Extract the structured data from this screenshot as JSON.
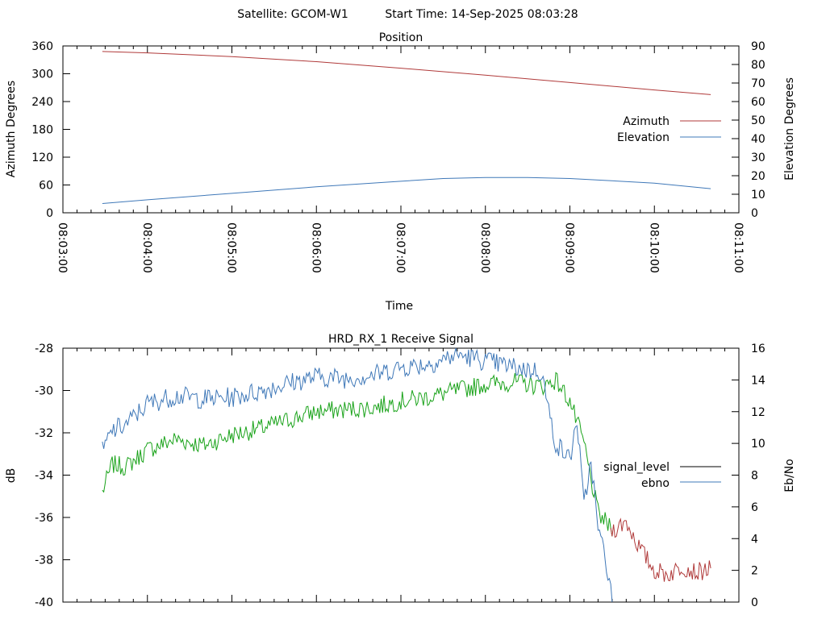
{
  "header": {
    "satellite": "Satellite: GCOM-W1",
    "start_time": "Start Time: 14-Sep-2025 08:03:28"
  },
  "colors": {
    "azimuth": "#b03a3a",
    "elevation": "#3f78b8",
    "signal_level_legend": "#000000",
    "signal_level": "#b03a3a",
    "signal_level_green": "#1aa31a",
    "ebno": "#3f78b8"
  },
  "chart_data": [
    {
      "type": "line",
      "title": "Position",
      "xlabel": "Time",
      "ylabel": "Azimuth Degrees",
      "y2label": "Elevation Degrees",
      "xlim": [
        "08:03:00",
        "08:11:00"
      ],
      "xticks": [
        "08:03:00",
        "08:04:00",
        "08:05:00",
        "08:06:00",
        "08:07:00",
        "08:08:00",
        "08:09:00",
        "08:10:00",
        "08:11:00"
      ],
      "ylim": [
        0,
        360
      ],
      "yticks": [
        "0",
        "60",
        "120",
        "180",
        "240",
        "300",
        "360"
      ],
      "y2lim": [
        0,
        90
      ],
      "y2ticks": [
        "0",
        "10",
        "20",
        "30",
        "40",
        "50",
        "60",
        "70",
        "80",
        "90"
      ],
      "legend": "right",
      "series": [
        {
          "name": "Azimuth",
          "axis": "y",
          "x": [
            "08:03:28",
            "08:04:00",
            "08:05:00",
            "08:06:00",
            "08:07:00",
            "08:08:00",
            "08:09:00",
            "08:10:00",
            "08:10:40"
          ],
          "values": [
            348,
            345,
            337,
            326,
            312,
            297,
            281,
            265,
            255
          ]
        },
        {
          "name": "Elevation",
          "axis": "y2",
          "x": [
            "08:03:28",
            "08:04:00",
            "08:05:00",
            "08:06:00",
            "08:07:00",
            "08:07:30",
            "08:08:00",
            "08:08:30",
            "08:09:00",
            "08:10:00",
            "08:10:40"
          ],
          "values": [
            5,
            7,
            10.5,
            14,
            17,
            18.5,
            19,
            19,
            18.5,
            16,
            13
          ]
        }
      ]
    },
    {
      "type": "line",
      "title": "HRD_RX_1 Receive Signal",
      "ylabel": "dB",
      "y2label": "Eb/No",
      "xlim": [
        "08:03:00",
        "08:11:00"
      ],
      "ylim": [
        -40,
        -28
      ],
      "yticks": [
        "-40",
        "-38",
        "-36",
        "-34",
        "-32",
        "-30",
        "-28"
      ],
      "y2lim": [
        0,
        16
      ],
      "y2ticks": [
        "0",
        "2",
        "4",
        "6",
        "8",
        "10",
        "12",
        "14",
        "16"
      ],
      "legend": "right",
      "series": [
        {
          "name": "signal_level",
          "axis": "y",
          "x": [
            "08:03:28",
            "08:03:35",
            "08:03:45",
            "08:04:00",
            "08:04:20",
            "08:04:40",
            "08:05:00",
            "08:05:20",
            "08:05:40",
            "08:06:00",
            "08:06:20",
            "08:06:40",
            "08:07:00",
            "08:07:20",
            "08:07:40",
            "08:08:00",
            "08:08:20",
            "08:08:40",
            "08:08:50",
            "08:09:00",
            "08:09:10",
            "08:09:15",
            "08:09:20",
            "08:09:30",
            "08:09:40",
            "08:09:50",
            "08:10:00",
            "08:10:10",
            "08:10:20",
            "08:10:30",
            "08:10:40"
          ],
          "values": [
            -34.8,
            -33.5,
            -33.6,
            -32.8,
            -32.3,
            -32.6,
            -32.1,
            -31.8,
            -31.4,
            -31.0,
            -30.9,
            -30.8,
            -30.5,
            -30.3,
            -30.0,
            -29.7,
            -29.6,
            -29.8,
            -29.5,
            -30.5,
            -32.5,
            -34.2,
            -35.8,
            -36.6,
            -36.2,
            -37.5,
            -38.5,
            -38.7,
            -38.3,
            -38.6,
            -38.4
          ]
        },
        {
          "name": "ebno",
          "axis": "y2",
          "x": [
            "08:03:28",
            "08:03:35",
            "08:03:45",
            "08:04:00",
            "08:04:20",
            "08:04:40",
            "08:05:00",
            "08:05:20",
            "08:05:40",
            "08:06:00",
            "08:06:20",
            "08:06:40",
            "08:07:00",
            "08:07:20",
            "08:07:40",
            "08:08:00",
            "08:08:20",
            "08:08:40",
            "08:08:45",
            "08:08:50",
            "08:09:00",
            "08:09:05",
            "08:09:10",
            "08:09:15",
            "08:09:20",
            "08:09:25",
            "08:09:30"
          ],
          "values": [
            9.5,
            10.8,
            11.2,
            12.5,
            13.0,
            12.8,
            12.9,
            13.3,
            13.8,
            14.2,
            14.1,
            14.3,
            14.8,
            15.0,
            15.6,
            15.2,
            14.8,
            14.5,
            12.0,
            10.0,
            9.0,
            11.5,
            6.0,
            9.0,
            4.5,
            3.0,
            0
          ]
        }
      ]
    }
  ]
}
